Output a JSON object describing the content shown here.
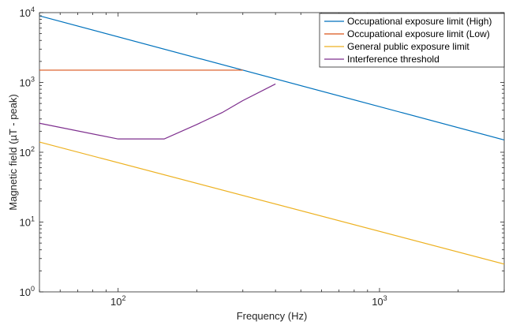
{
  "chart_data": {
    "type": "line",
    "xlabel": "Frequency (Hz)",
    "ylabel": "Magnetic field (µT - peak)",
    "xscale": "log",
    "yscale": "log",
    "xlim": [
      50,
      3000
    ],
    "ylim": [
      1,
      10000
    ],
    "grid": false,
    "legend_position": "top-right",
    "x_ticks": [
      {
        "value": 100,
        "base": "10",
        "exp": "2"
      },
      {
        "value": 1000,
        "base": "10",
        "exp": "3"
      }
    ],
    "y_ticks": [
      {
        "value": 1,
        "base": "10",
        "exp": "0"
      },
      {
        "value": 10,
        "base": "10",
        "exp": "1"
      },
      {
        "value": 100,
        "base": "10",
        "exp": "2"
      },
      {
        "value": 1000,
        "base": "10",
        "exp": "3"
      },
      {
        "value": 10000,
        "base": "10",
        "exp": "4"
      }
    ],
    "series": [
      {
        "name": "Occupational exposure limit (High)",
        "color": "#0072BD",
        "points": [
          [
            50,
            9000
          ],
          [
            3000,
            150
          ]
        ]
      },
      {
        "name": "Occupational exposure limit (Low)",
        "color": "#D95319",
        "points": [
          [
            50,
            1500
          ],
          [
            300,
            1500
          ]
        ]
      },
      {
        "name": "General public exposure limit",
        "color": "#EDB120",
        "points": [
          [
            50,
            140
          ],
          [
            3000,
            2.5
          ]
        ]
      },
      {
        "name": "Interference threshold",
        "color": "#7E2F8E",
        "points": [
          [
            50,
            260
          ],
          [
            100,
            155
          ],
          [
            150,
            155
          ],
          [
            200,
            250
          ],
          [
            250,
            370
          ],
          [
            300,
            550
          ],
          [
            400,
            950
          ]
        ]
      }
    ]
  }
}
